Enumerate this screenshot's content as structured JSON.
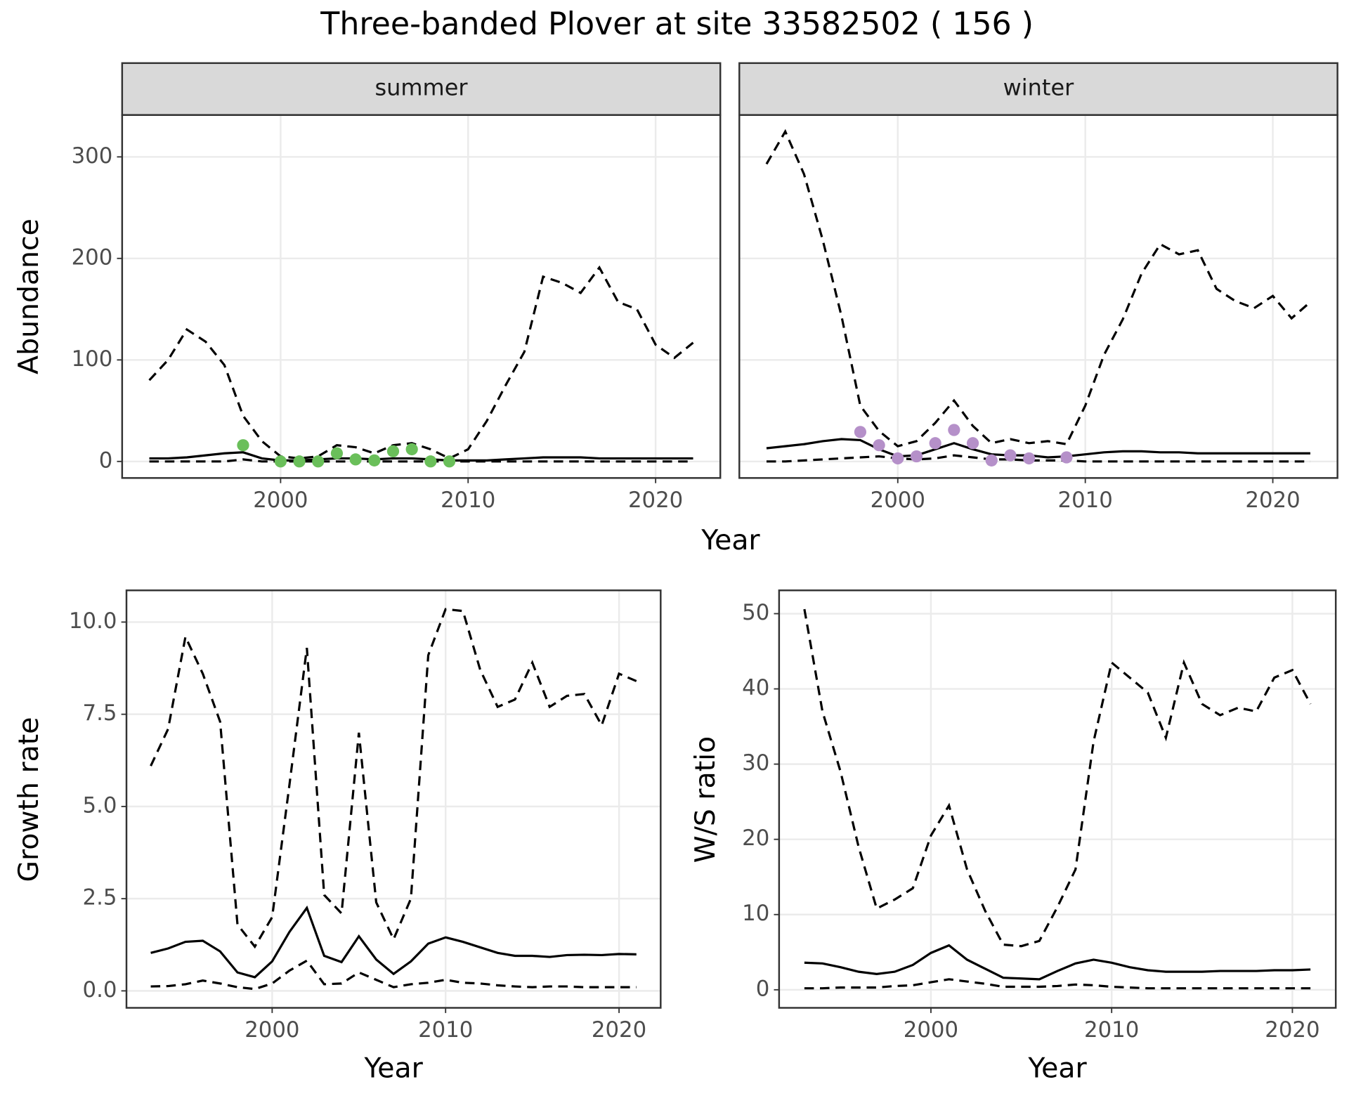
{
  "title": "Three-banded Plover at site 33582502 ( 156 )",
  "chart_data": [
    {
      "type": "line",
      "title": "summer",
      "ylabel": "Abundance",
      "xlabel": "Year",
      "x": [
        1993,
        1994,
        1995,
        1996,
        1997,
        1998,
        1999,
        2000,
        2001,
        2002,
        2003,
        2004,
        2005,
        2006,
        2007,
        2008,
        2009,
        2010,
        2011,
        2012,
        2013,
        2014,
        2015,
        2016,
        2017,
        2018,
        2019,
        2020,
        2021,
        2022
      ],
      "xlim": [
        1991.55,
        2023.45
      ],
      "ylim": [
        -16.3,
        341.3
      ],
      "xticks": [
        2000,
        2010,
        2020
      ],
      "yticks": [
        0,
        100,
        200,
        300
      ],
      "grid": true,
      "series": [
        {
          "color": "#000000",
          "linestyle": "dashed",
          "values": [
            80,
            100,
            130,
            118,
            95,
            45,
            20,
            5,
            3,
            5,
            16,
            14,
            8,
            16,
            18,
            12,
            3,
            12,
            40,
            75,
            108,
            182,
            176,
            166,
            191,
            157,
            150,
            115,
            102,
            117
          ]
        },
        {
          "color": "#000000",
          "linestyle": "solid",
          "values": [
            3,
            3,
            4,
            6,
            8,
            9,
            3,
            1,
            1,
            2,
            3,
            3,
            2,
            3,
            3,
            2,
            1,
            1,
            1,
            2,
            3,
            4,
            4,
            4,
            3,
            3,
            3,
            3,
            3,
            3
          ]
        },
        {
          "color": "#000000",
          "linestyle": "dashed",
          "values": [
            0,
            0,
            0,
            0,
            0,
            2,
            0,
            0,
            0,
            0,
            0,
            0,
            0,
            0,
            0,
            0,
            0,
            0,
            0,
            0,
            0,
            0,
            0,
            0,
            0,
            0,
            0,
            0,
            0,
            0
          ]
        },
        {
          "color": "#6abf5a",
          "marker": "point",
          "values": [
            null,
            null,
            null,
            null,
            null,
            16,
            null,
            0,
            0,
            0,
            8,
            2,
            1,
            10,
            12,
            0,
            0,
            null,
            null,
            null,
            null,
            null,
            null,
            null,
            null,
            null,
            null,
            null,
            null,
            null
          ]
        }
      ]
    },
    {
      "type": "line",
      "title": "winter",
      "show_yticklabels": false,
      "x": [
        1993,
        1994,
        1995,
        1996,
        1997,
        1998,
        1999,
        2000,
        2001,
        2002,
        2003,
        2004,
        2005,
        2006,
        2007,
        2008,
        2009,
        2010,
        2011,
        2012,
        2013,
        2014,
        2015,
        2016,
        2017,
        2018,
        2019,
        2020,
        2021,
        2022
      ],
      "xlim": [
        1991.55,
        2023.45
      ],
      "ylim": [
        -16.3,
        341.3
      ],
      "xticks": [
        2000,
        2010,
        2020
      ],
      "yticks": [
        0,
        100,
        200,
        300
      ],
      "grid": true,
      "series": [
        {
          "color": "#000000",
          "linestyle": "dashed",
          "values": [
            293,
            325,
            283,
            218,
            143,
            55,
            30,
            15,
            20,
            38,
            60,
            35,
            18,
            22,
            18,
            20,
            17,
            55,
            105,
            140,
            185,
            214,
            204,
            208,
            170,
            158,
            151,
            163,
            141,
            157
          ]
        },
        {
          "color": "#000000",
          "linestyle": "solid",
          "values": [
            13,
            15,
            17,
            20,
            22,
            21,
            12,
            5,
            6,
            12,
            18,
            12,
            7,
            6,
            6,
            4,
            5,
            7,
            9,
            10,
            10,
            9,
            9,
            8,
            8,
            8,
            8,
            8,
            8,
            8
          ]
        },
        {
          "color": "#000000",
          "linestyle": "dashed",
          "values": [
            0,
            0,
            1,
            2,
            3,
            4,
            5,
            3,
            2,
            3,
            6,
            4,
            2,
            2,
            1,
            1,
            1,
            0,
            0,
            0,
            0,
            0,
            0,
            0,
            0,
            0,
            0,
            0,
            0,
            0
          ]
        },
        {
          "color": "#b590c9",
          "marker": "point",
          "values": [
            null,
            null,
            null,
            null,
            null,
            29,
            16,
            3,
            5,
            18,
            31,
            18,
            1,
            6,
            3,
            null,
            4,
            null,
            null,
            null,
            null,
            null,
            null,
            null,
            null,
            null,
            null,
            null,
            null,
            null
          ]
        }
      ]
    },
    {
      "type": "line",
      "ylabel": "Growth rate",
      "xlabel": "Year",
      "x": [
        1993,
        1994,
        1995,
        1996,
        1997,
        1998,
        1999,
        2000,
        2001,
        2002,
        2003,
        2004,
        2005,
        2006,
        2007,
        2008,
        2009,
        2010,
        2011,
        2012,
        2013,
        2014,
        2015,
        2016,
        2017,
        2018,
        2019,
        2020,
        2021
      ],
      "xlim": [
        1991.6,
        2022.4
      ],
      "ylim": [
        -0.46,
        10.86
      ],
      "xticks": [
        2000,
        2010,
        2020
      ],
      "yticks": [
        {
          "value": 0,
          "label": "0.0"
        },
        2.5,
        {
          "value": 5,
          "label": "5.0"
        },
        7.5,
        {
          "value": 10,
          "label": "10.0"
        }
      ],
      "grid": true,
      "series": [
        {
          "color": "#000000",
          "linestyle": "dashed",
          "values": [
            6.1,
            7.1,
            9.6,
            8.6,
            7.3,
            1.8,
            1.2,
            2.0,
            5.6,
            9.3,
            2.6,
            2.1,
            7.0,
            2.4,
            1.4,
            2.5,
            9.1,
            10.35,
            10.3,
            8.7,
            7.7,
            7.9,
            8.9,
            7.7,
            8.0,
            8.05,
            7.2,
            8.6,
            8.4
          ]
        },
        {
          "color": "#000000",
          "linestyle": "solid",
          "values": [
            1.03,
            1.15,
            1.33,
            1.36,
            1.07,
            0.5,
            0.37,
            0.8,
            1.6,
            2.25,
            0.95,
            0.78,
            1.48,
            0.85,
            0.46,
            0.8,
            1.28,
            1.45,
            1.33,
            1.18,
            1.03,
            0.95,
            0.95,
            0.92,
            0.97,
            0.98,
            0.97,
            1.0,
            0.99
          ]
        },
        {
          "color": "#000000",
          "linestyle": "dashed",
          "values": [
            0.12,
            0.13,
            0.18,
            0.28,
            0.2,
            0.1,
            0.05,
            0.2,
            0.55,
            0.82,
            0.18,
            0.2,
            0.5,
            0.3,
            0.1,
            0.18,
            0.22,
            0.3,
            0.22,
            0.2,
            0.15,
            0.12,
            0.1,
            0.12,
            0.12,
            0.1,
            0.1,
            0.1,
            0.1
          ]
        }
      ]
    },
    {
      "type": "line",
      "ylabel": "W/S ratio",
      "xlabel": "Year",
      "x": [
        1993,
        1994,
        1995,
        1996,
        1997,
        1998,
        1999,
        2000,
        2001,
        2002,
        2003,
        2004,
        2005,
        2006,
        2007,
        2008,
        2009,
        2010,
        2011,
        2012,
        2013,
        2014,
        2015,
        2016,
        2017,
        2018,
        2019,
        2020,
        2021
      ],
      "xlim": [
        1991.6,
        2022.4
      ],
      "ylim": [
        -2.4,
        53.1
      ],
      "xticks": [
        2000,
        2010,
        2020
      ],
      "yticks": [
        0,
        10,
        20,
        30,
        40,
        50
      ],
      "grid": true,
      "series": [
        {
          "color": "#000000",
          "linestyle": "dashed",
          "values": [
            50.6,
            37,
            29,
            19,
            10.8,
            12,
            13.5,
            20.5,
            24.5,
            16,
            10.5,
            6,
            5.8,
            6.5,
            11,
            16,
            33,
            43.5,
            41.5,
            39.5,
            33.5,
            43.5,
            38,
            36.5,
            37.5,
            37,
            41.5,
            42.5,
            38
          ]
        },
        {
          "color": "#000000",
          "linestyle": "solid",
          "values": [
            3.6,
            3.5,
            3.0,
            2.4,
            2.1,
            2.4,
            3.3,
            4.9,
            5.9,
            4.0,
            2.8,
            1.6,
            1.5,
            1.4,
            2.5,
            3.5,
            4.0,
            3.6,
            3.0,
            2.6,
            2.4,
            2.4,
            2.4,
            2.5,
            2.5,
            2.5,
            2.6,
            2.6,
            2.7
          ]
        },
        {
          "color": "#000000",
          "linestyle": "dashed",
          "values": [
            0.2,
            0.2,
            0.3,
            0.3,
            0.3,
            0.5,
            0.6,
            1.0,
            1.4,
            1.1,
            0.8,
            0.4,
            0.4,
            0.4,
            0.5,
            0.7,
            0.6,
            0.4,
            0.3,
            0.2,
            0.2,
            0.2,
            0.2,
            0.2,
            0.2,
            0.2,
            0.2,
            0.2,
            0.2
          ]
        }
      ]
    }
  ]
}
